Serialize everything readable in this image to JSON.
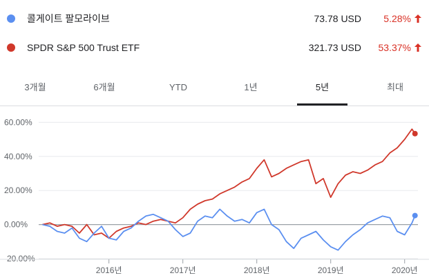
{
  "legend": [
    {
      "name": "콜게이트 팔모라이브",
      "price": "73.78 USD",
      "change": "5.28%",
      "color": "#5b8ff0"
    },
    {
      "name": "SPDR S&P 500 Trust ETF",
      "price": "321.73 USD",
      "change": "53.37%",
      "color": "#d0382b"
    }
  ],
  "tabs": [
    {
      "label": "3개월",
      "active": false
    },
    {
      "label": "6개월",
      "active": false
    },
    {
      "label": "YTD",
      "active": false
    },
    {
      "label": "1년",
      "active": false
    },
    {
      "label": "5년",
      "active": true
    },
    {
      "label": "최대",
      "active": false
    }
  ],
  "chart_data": {
    "type": "line",
    "y_ticks": [
      "60.00%",
      "40.00%",
      "20.00%",
      "0.00%",
      "-20.00%"
    ],
    "y_tick_values": [
      60,
      40,
      20,
      0,
      -20
    ],
    "x_ticks": [
      "2016년",
      "2017년",
      "2018년",
      "2019년",
      "2020년"
    ],
    "x_tick_years": [
      2016,
      2017,
      2018,
      2019,
      2020
    ],
    "x_range": [
      2015.05,
      2020.18
    ],
    "ylim": [
      -22,
      65
    ],
    "series": [
      {
        "name": "콜게이트 팔모라이브",
        "color": "#5b8ff0",
        "x": [
          2015.1,
          2015.2,
          2015.3,
          2015.4,
          2015.5,
          2015.6,
          2015.7,
          2015.8,
          2015.9,
          2016.0,
          2016.1,
          2016.2,
          2016.3,
          2016.4,
          2016.5,
          2016.6,
          2016.7,
          2016.8,
          2016.9,
          2017.0,
          2017.1,
          2017.2,
          2017.3,
          2017.4,
          2017.5,
          2017.6,
          2017.7,
          2017.8,
          2017.9,
          2018.0,
          2018.1,
          2018.2,
          2018.3,
          2018.4,
          2018.5,
          2018.6,
          2018.7,
          2018.8,
          2018.9,
          2019.0,
          2019.1,
          2019.2,
          2019.3,
          2019.4,
          2019.5,
          2019.6,
          2019.7,
          2019.8,
          2019.9,
          2020.0,
          2020.1,
          2020.14
        ],
        "y": [
          0,
          -1,
          -4,
          -5,
          -2,
          -8,
          -10,
          -5,
          -1,
          -8,
          -9,
          -4,
          -2,
          2,
          5,
          6,
          4,
          2,
          -3,
          -7,
          -5,
          2,
          5,
          4,
          9,
          5,
          2,
          3,
          1,
          7,
          9,
          0,
          -3,
          -10,
          -14,
          -8,
          -6,
          -4,
          -9,
          -13,
          -15,
          -10,
          -6,
          -3,
          1,
          3,
          5,
          4,
          -4,
          -6,
          1,
          5.28
        ]
      },
      {
        "name": "SPDR S&P 500 Trust ETF",
        "color": "#d0382b",
        "x": [
          2015.1,
          2015.2,
          2015.3,
          2015.4,
          2015.5,
          2015.6,
          2015.7,
          2015.8,
          2015.9,
          2016.0,
          2016.1,
          2016.2,
          2016.3,
          2016.4,
          2016.5,
          2016.6,
          2016.7,
          2016.8,
          2016.9,
          2017.0,
          2017.1,
          2017.2,
          2017.3,
          2017.4,
          2017.5,
          2017.6,
          2017.7,
          2017.8,
          2017.9,
          2018.0,
          2018.1,
          2018.2,
          2018.3,
          2018.4,
          2018.5,
          2018.6,
          2018.7,
          2018.8,
          2018.9,
          2019.0,
          2019.1,
          2019.2,
          2019.3,
          2019.4,
          2019.5,
          2019.6,
          2019.7,
          2019.8,
          2019.9,
          2020.0,
          2020.1,
          2020.14
        ],
        "y": [
          0,
          1,
          -1,
          0,
          -1,
          -5,
          0,
          -6,
          -5,
          -8,
          -4,
          -2,
          -1,
          1,
          0,
          2,
          3,
          2,
          1,
          4,
          9,
          12,
          14,
          15,
          18,
          20,
          22,
          25,
          27,
          33,
          38,
          28,
          30,
          33,
          35,
          37,
          38,
          24,
          27,
          16,
          24,
          29,
          31,
          30,
          32,
          35,
          37,
          42,
          45,
          50,
          56,
          53.37
        ]
      }
    ]
  }
}
